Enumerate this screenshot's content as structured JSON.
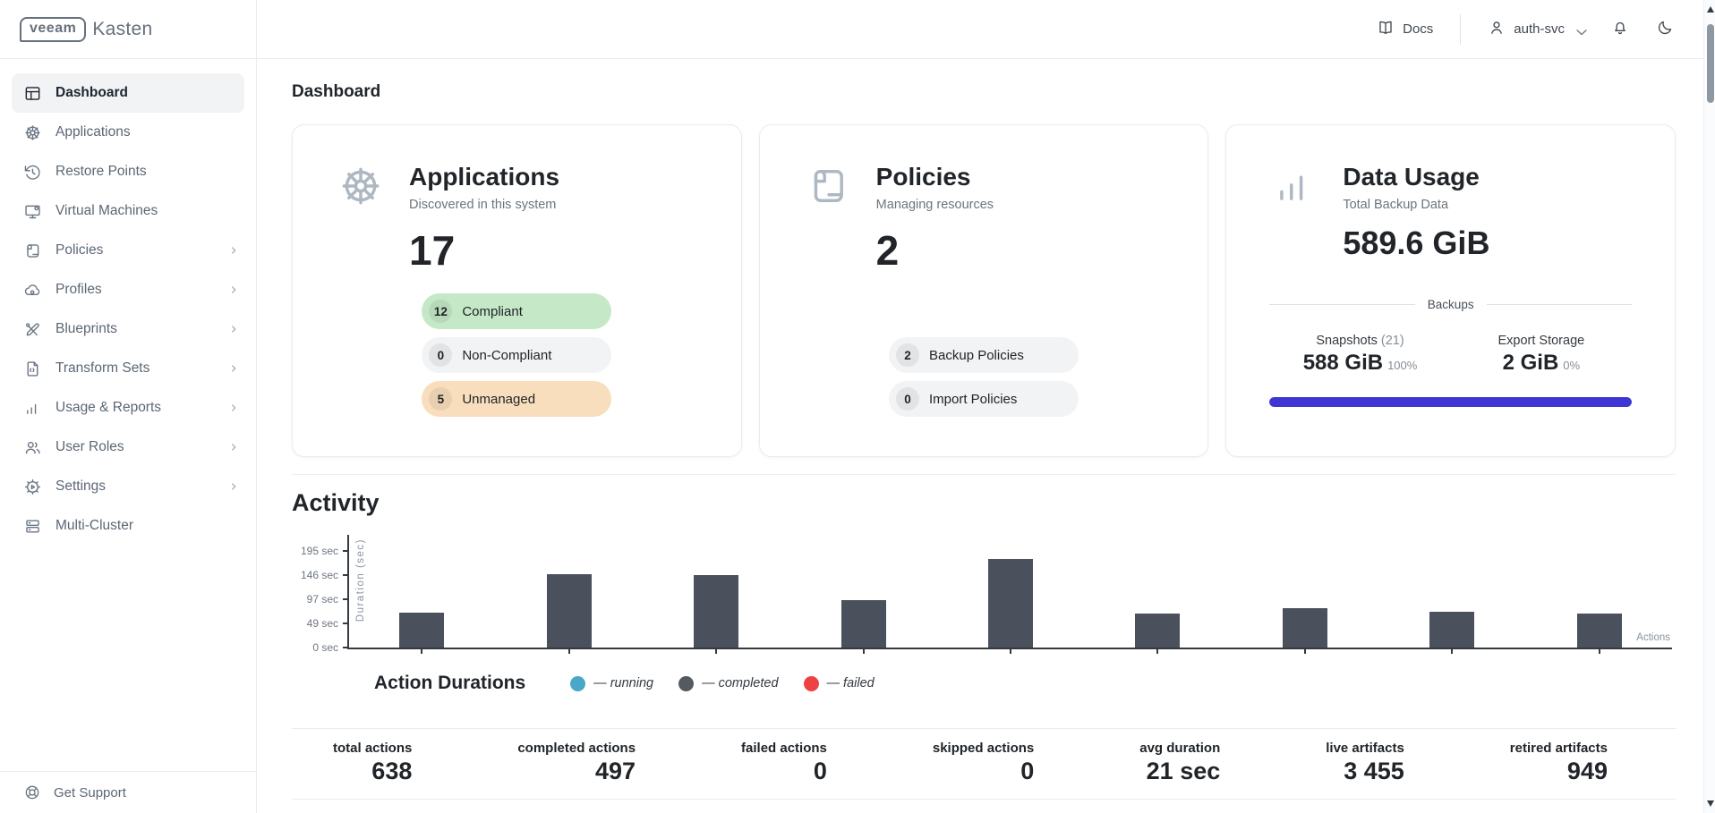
{
  "brand": {
    "veeam": "veeam",
    "kasten": "Kasten"
  },
  "header": {
    "docs_label": "Docs",
    "user": "auth-svc"
  },
  "sidebar": {
    "items": [
      {
        "label": "Dashboard",
        "icon": "dashboard",
        "active": true,
        "chevron": false
      },
      {
        "label": "Applications",
        "icon": "applications",
        "active": false,
        "chevron": false
      },
      {
        "label": "Restore Points",
        "icon": "restore",
        "active": false,
        "chevron": false
      },
      {
        "label": "Virtual Machines",
        "icon": "vm",
        "active": false,
        "chevron": false
      },
      {
        "label": "Policies",
        "icon": "policies",
        "active": false,
        "chevron": true
      },
      {
        "label": "Profiles",
        "icon": "profiles",
        "active": false,
        "chevron": true
      },
      {
        "label": "Blueprints",
        "icon": "blueprints",
        "active": false,
        "chevron": true
      },
      {
        "label": "Transform Sets",
        "icon": "transform",
        "active": false,
        "chevron": true
      },
      {
        "label": "Usage & Reports",
        "icon": "usage",
        "active": false,
        "chevron": true
      },
      {
        "label": "User Roles",
        "icon": "users",
        "active": false,
        "chevron": true
      },
      {
        "label": "Settings",
        "icon": "settings",
        "active": false,
        "chevron": true
      },
      {
        "label": "Multi-Cluster",
        "icon": "cluster",
        "active": false,
        "chevron": false
      }
    ],
    "footer": "Get Support"
  },
  "page": {
    "title": "Dashboard",
    "activity_title": "Activity"
  },
  "cards": {
    "applications": {
      "title": "Applications",
      "subtitle": "Discovered in this system",
      "count": "17",
      "pills": [
        {
          "count": "12",
          "label": "Compliant",
          "color": "green"
        },
        {
          "count": "0",
          "label": "Non-Compliant",
          "color": "gray"
        },
        {
          "count": "5",
          "label": "Unmanaged",
          "color": "orange"
        }
      ]
    },
    "policies": {
      "title": "Policies",
      "subtitle": "Managing resources",
      "count": "2",
      "pills": [
        {
          "count": "2",
          "label": "Backup Policies",
          "color": "gray"
        },
        {
          "count": "0",
          "label": "Import Policies",
          "color": "gray"
        }
      ]
    },
    "data_usage": {
      "title": "Data Usage",
      "subtitle": "Total Backup Data",
      "total": "589.6 GiB",
      "divider_label": "Backups",
      "snapshots_label": "Snapshots",
      "snapshots_count": "(21)",
      "snapshots_value": "588 GiB",
      "snapshots_pct": "100%",
      "export_label": "Export Storage",
      "export_value": "2 GiB",
      "export_pct": "0%",
      "bar_color": "#3d36d4",
      "bar_fill_pct": 100
    }
  },
  "chart_data": {
    "type": "bar",
    "title": "Action Durations",
    "ylabel": "Duration (sec)",
    "xlabel": "Actions",
    "ylim": [
      0,
      195
    ],
    "yticks": [
      0,
      49,
      97,
      146,
      195
    ],
    "ytick_labels": [
      "0 sec",
      "49 sec",
      "97 sec",
      "146 sec",
      "195 sec"
    ],
    "values": [
      70,
      148,
      147,
      95,
      178,
      69,
      79,
      72,
      68
    ],
    "bar_status": "completed",
    "bar_color": "#4a515c",
    "grid": false,
    "legend_position": "bottom",
    "legend": [
      {
        "name": "running",
        "label": "— running",
        "color": "#4ba7c9"
      },
      {
        "name": "completed",
        "label": "— completed",
        "color": "#555a61"
      },
      {
        "name": "failed",
        "label": "— failed",
        "color": "#ee4144"
      }
    ]
  },
  "stats": [
    {
      "label": "total actions",
      "value": "638"
    },
    {
      "label": "completed actions",
      "value": "497"
    },
    {
      "label": "failed actions",
      "value": "0"
    },
    {
      "label": "skipped actions",
      "value": "0"
    },
    {
      "label": "avg duration",
      "value": "21 sec"
    },
    {
      "label": "live artifacts",
      "value": "3 455"
    },
    {
      "label": "retired artifacts",
      "value": "949"
    }
  ]
}
